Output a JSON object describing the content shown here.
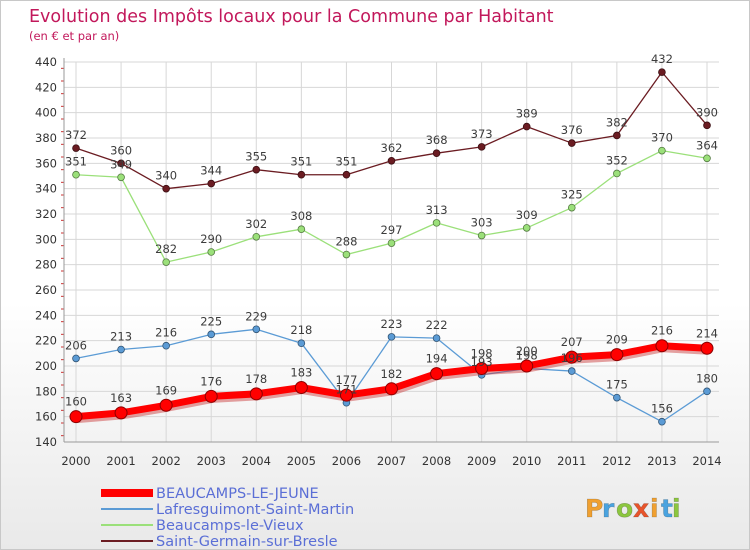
{
  "chart_data": {
    "type": "line",
    "title": "Evolution des Impôts locaux pour la Commune par Habitant",
    "subtitle": "(en € et par an)",
    "xlabel": "",
    "ylabel": "",
    "x": [
      "2000",
      "2001",
      "2002",
      "2003",
      "2004",
      "2005",
      "2006",
      "2007",
      "2008",
      "2009",
      "2010",
      "2011",
      "2012",
      "2013",
      "2014"
    ],
    "ylim": [
      140,
      440
    ],
    "yticks": [
      "140",
      "160",
      "180",
      "200",
      "220",
      "240",
      "260",
      "280",
      "300",
      "320",
      "340",
      "360",
      "380",
      "400",
      "420",
      "440"
    ],
    "grid": true,
    "legend_position": "bottom-left",
    "series": [
      {
        "name": "Saint-Germain-sur-Bresle",
        "color": "#6b1c22",
        "values": [
          372,
          360,
          340,
          344,
          355,
          351,
          351,
          362,
          368,
          373,
          389,
          376,
          382,
          432,
          390
        ],
        "labels": [
          "372",
          "360",
          "340",
          "344",
          "355",
          "351",
          "351",
          "362",
          "368",
          "373",
          "389",
          "376",
          "382",
          "432",
          "390"
        ]
      },
      {
        "name": "Beaucamps-le-Vieux",
        "color": "#9be07a",
        "values": [
          351,
          349,
          282,
          290,
          302,
          308,
          288,
          297,
          313,
          303,
          309,
          325,
          352,
          370,
          364
        ],
        "labels": [
          "351",
          "349",
          "282",
          "290",
          "302",
          "308",
          "288",
          "297",
          "313",
          "303",
          "309",
          "325",
          "352",
          "370",
          "364"
        ]
      },
      {
        "name": "Lafresguimont-Saint-Martin",
        "color": "#5b9bd5",
        "values": [
          206,
          213,
          216,
          225,
          229,
          218,
          171,
          223,
          222,
          193,
          198,
          196,
          175,
          156,
          180
        ],
        "labels": [
          "206",
          "213",
          "216",
          "225",
          "229",
          "218",
          "171",
          "223",
          "222",
          "193",
          "198",
          "196",
          "175",
          "156",
          "180"
        ]
      },
      {
        "name": "BEAUCAMPS-LE-JEUNE",
        "color": "#ff0000",
        "values": [
          160,
          163,
          169,
          176,
          178,
          183,
          177,
          182,
          194,
          198,
          200,
          207,
          209,
          216,
          214
        ],
        "labels": [
          "160",
          "163",
          "169",
          "176",
          "178",
          "183",
          "177",
          "182",
          "194",
          "198",
          "200",
          "207",
          "209",
          "216",
          "214"
        ]
      }
    ],
    "legend": [
      "BEAUCAMPS-LE-JEUNE",
      "Lafresguimont-Saint-Martin",
      "Beaucamps-le-Vieux",
      "Saint-Germain-sur-Bresle"
    ]
  },
  "logo": {
    "text": "Proxiti",
    "colors": [
      "#f0a030",
      "#4aa3df",
      "#8cc63f",
      "#e8542b"
    ]
  }
}
